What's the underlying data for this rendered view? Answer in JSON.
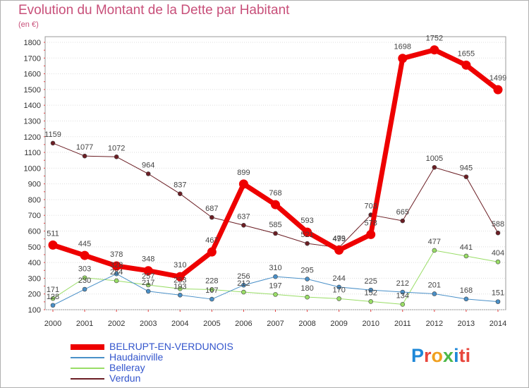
{
  "title": "Evolution du Montant de la Dette par Habitant",
  "unit": "(en €)",
  "logo": {
    "letters": [
      "P",
      "r",
      "o",
      "x",
      "i",
      "ti"
    ]
  },
  "chart_data": {
    "type": "line",
    "title": "Evolution du Montant de la Dette par Habitant",
    "subtitle": "(en €)",
    "xlabel": "",
    "ylabel": "",
    "x": [
      "2000",
      "2001",
      "2002",
      "2003",
      "2004",
      "2005",
      "2006",
      "2007",
      "2008",
      "2009",
      "2010",
      "2011",
      "2012",
      "2013",
      "2014"
    ],
    "ylim": [
      100,
      1800
    ],
    "yticks": [
      100,
      200,
      300,
      400,
      500,
      600,
      700,
      800,
      900,
      1000,
      1100,
      1200,
      1300,
      1400,
      1500,
      1600,
      1700,
      1800
    ],
    "grid": "horizontal",
    "legend": "bottom-left",
    "series": [
      {
        "name": "Verdun",
        "color": "#6b1e24",
        "values": [
          1159,
          1077,
          1072,
          964,
          837,
          687,
          637,
          585,
          521,
          495,
          703,
          665,
          1005,
          945,
          588
        ]
      },
      {
        "name": "Belleray",
        "color": "#99dd66",
        "values": [
          171,
          303,
          284,
          257,
          233,
          228,
          212,
          197,
          180,
          170,
          152,
          134,
          477,
          441,
          404
        ]
      },
      {
        "name": "Haudainville",
        "color": "#4a90c8",
        "values": [
          128,
          230,
          328,
          217,
          193,
          167,
          256,
          310,
          295,
          244,
          225,
          212,
          201,
          168,
          151
        ]
      },
      {
        "name": "BELRUPT-EN-VERDUNOIS",
        "color": "#ee0000",
        "values": [
          511,
          445,
          378,
          348,
          310,
          467,
          899,
          768,
          593,
          479,
          578,
          1698,
          1752,
          1655,
          1499
        ]
      }
    ]
  },
  "legend_order": [
    "BELRUPT-EN-VERDUNOIS",
    "Haudainville",
    "Belleray",
    "Verdun"
  ]
}
